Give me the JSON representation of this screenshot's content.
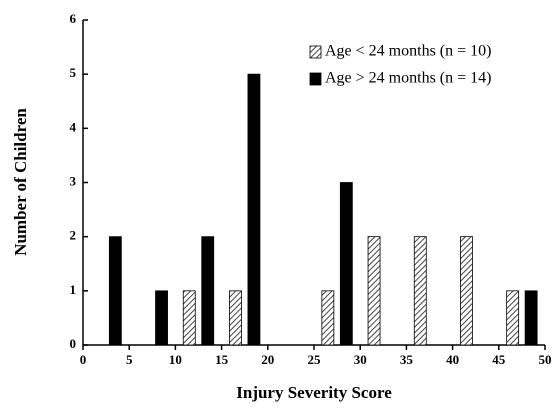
{
  "chart_data": {
    "type": "bar",
    "x_label": "Injury Severity Score",
    "y_label": "Number of Children",
    "x": [
      2.5,
      7.5,
      12.5,
      17.5,
      22.5,
      27.5,
      32.5,
      37.5,
      42.5,
      47.5
    ],
    "series": [
      {
        "name": "Age < 24 months (n = 10)",
        "color": "#444444",
        "hatch": true,
        "values": [
          0,
          0,
          1,
          1,
          0,
          1,
          2,
          2,
          2,
          1
        ]
      },
      {
        "name": "Age > 24 months (n = 14)",
        "color": "#000000",
        "hatch": false,
        "values": [
          2,
          1,
          2,
          5,
          0,
          3,
          0,
          0,
          0,
          1
        ]
      }
    ],
    "xlim": [
      0,
      50
    ],
    "xticks": [
      0,
      5,
      10,
      15,
      20,
      25,
      30,
      35,
      40,
      45,
      50
    ],
    "ylim": [
      0,
      6
    ],
    "yticks": [
      0,
      1,
      2,
      3,
      4,
      5,
      6
    ],
    "legend": "upper right"
  }
}
